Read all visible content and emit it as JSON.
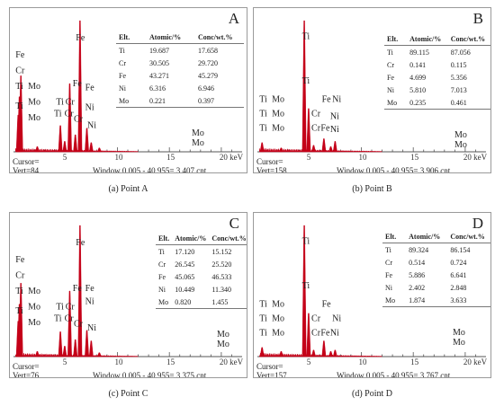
{
  "common": {
    "table_headers": [
      "Elt.",
      "Atomic/%",
      "Conc/wt.%"
    ],
    "x_ticks": [
      "5",
      "10",
      "15",
      "20 keV"
    ],
    "cursor_label": "Cursor=",
    "window_label": "Window 0.005 - 40.955=",
    "colors": {
      "spectrum": "#c40018",
      "axis": "#555555",
      "frame": "#9a9a9a"
    }
  },
  "panels": [
    {
      "letter": "A",
      "caption": "(a)  Point A",
      "vert": "Vert=84",
      "count": "3,407 cnt",
      "rows": [
        [
          "Ti",
          "19.687",
          "17.658"
        ],
        [
          "Cr",
          "30.505",
          "29.720"
        ],
        [
          "Fe",
          "43.271",
          "45.279"
        ],
        [
          "Ni",
          "6.316",
          "6.946"
        ],
        [
          "Mo",
          "0.221",
          "0.397"
        ]
      ],
      "extra_label": "Mo"
    },
    {
      "letter": "B",
      "caption": "(b)  Point B",
      "vert": "Vert=158",
      "count": "3,906 cnt",
      "rows": [
        [
          "Ti",
          "89.115",
          "87.056"
        ],
        [
          "Cr",
          "0.141",
          "0.115"
        ],
        [
          "Fe",
          "4.699",
          "5.356"
        ],
        [
          "Ni",
          "5.810",
          "7.013"
        ],
        [
          "Mo",
          "0.235",
          "0.461"
        ]
      ],
      "extra_label": "Mo"
    },
    {
      "letter": "C",
      "caption": "(c)  Point C",
      "vert": "Vert=76",
      "count": "3,375 cnt",
      "rows": [
        [
          "Ti",
          "17.120",
          "15.152"
        ],
        [
          "Cr",
          "26.545",
          "25.520"
        ],
        [
          "Fe",
          "45.065",
          "46.533"
        ],
        [
          "Ni",
          "10.449",
          "11.340"
        ],
        [
          "Mo",
          "0.820",
          "1.455"
        ]
      ],
      "extra_label": "Mo"
    },
    {
      "letter": "D",
      "caption": "(d)  Point D",
      "vert": "Vert=157",
      "count": "3,767 cnt",
      "rows": [
        [
          "Ti",
          "89.324",
          "86.154"
        ],
        [
          "Cr",
          "0.514",
          "0.724"
        ],
        [
          "Fe",
          "5.886",
          "6.641"
        ],
        [
          "Ni",
          "2.402",
          "2.848"
        ],
        [
          "Mo",
          "1.874",
          "3.633"
        ]
      ],
      "extra_label": "Mo"
    }
  ],
  "chart_data": [
    {
      "type": "bar",
      "title": "A",
      "x_unit": "keV",
      "xlim": [
        0,
        22
      ],
      "ylim": [
        0,
        1
      ],
      "peaks": [
        {
          "x": 0.45,
          "y": 0.28
        },
        {
          "x": 0.57,
          "y": 0.42
        },
        {
          "x": 0.71,
          "y": 0.58
        },
        {
          "x": 2.29,
          "y": 0.04
        },
        {
          "x": 4.51,
          "y": 0.2
        },
        {
          "x": 4.93,
          "y": 0.08
        },
        {
          "x": 5.41,
          "y": 0.52
        },
        {
          "x": 5.95,
          "y": 0.13
        },
        {
          "x": 6.4,
          "y": 1.0
        },
        {
          "x": 7.06,
          "y": 0.18
        },
        {
          "x": 7.48,
          "y": 0.07
        },
        {
          "x": 8.26,
          "y": 0.03
        }
      ],
      "labels": [
        {
          "text": "Fe",
          "x": 0.2,
          "y": 0.72
        },
        {
          "text": "Cr",
          "x": 0.2,
          "y": 0.6
        },
        {
          "text": "Ti",
          "x": 0.2,
          "y": 0.48
        },
        {
          "text": "Ti",
          "x": 0.2,
          "y": 0.33
        },
        {
          "text": "Mo",
          "x": 1.4,
          "y": 0.48
        },
        {
          "text": "Mo",
          "x": 1.4,
          "y": 0.36
        },
        {
          "text": "Mo",
          "x": 1.4,
          "y": 0.24
        },
        {
          "text": "Ti",
          "x": 4.1,
          "y": 0.36
        },
        {
          "text": "Ti",
          "x": 3.9,
          "y": 0.27
        },
        {
          "text": "Cr",
          "x": 5.0,
          "y": 0.36
        },
        {
          "text": "Cr",
          "x": 4.9,
          "y": 0.27
        },
        {
          "text": "Cr",
          "x": 5.8,
          "y": 0.23
        },
        {
          "text": "Fe",
          "x": 6.0,
          "y": 0.85
        },
        {
          "text": "Fe",
          "x": 5.7,
          "y": 0.5
        },
        {
          "text": "Ni",
          "x": 6.9,
          "y": 0.32
        },
        {
          "text": "Ni",
          "x": 7.1,
          "y": 0.18
        },
        {
          "text": "Fe",
          "x": 6.9,
          "y": 0.47
        }
      ]
    },
    {
      "type": "bar",
      "title": "B",
      "x_unit": "keV",
      "xlim": [
        0,
        22
      ],
      "ylim": [
        0,
        1
      ],
      "peaks": [
        {
          "x": 0.45,
          "y": 0.07
        },
        {
          "x": 2.29,
          "y": 0.03
        },
        {
          "x": 4.51,
          "y": 1.0
        },
        {
          "x": 4.93,
          "y": 0.33
        },
        {
          "x": 5.41,
          "y": 0.05
        },
        {
          "x": 6.4,
          "y": 0.1
        },
        {
          "x": 7.06,
          "y": 0.04
        },
        {
          "x": 7.48,
          "y": 0.08
        }
      ],
      "labels": [
        {
          "text": "Ti",
          "x": 4.3,
          "y": 0.86
        },
        {
          "text": "Ti",
          "x": 4.3,
          "y": 0.52
        },
        {
          "text": "Ti",
          "x": 0.2,
          "y": 0.38
        },
        {
          "text": "Ti",
          "x": 0.2,
          "y": 0.27
        },
        {
          "text": "Ti",
          "x": 0.2,
          "y": 0.16
        },
        {
          "text": "Mo",
          "x": 1.4,
          "y": 0.38
        },
        {
          "text": "Mo",
          "x": 1.4,
          "y": 0.27
        },
        {
          "text": "Mo",
          "x": 1.4,
          "y": 0.16
        },
        {
          "text": "Cr",
          "x": 5.2,
          "y": 0.27
        },
        {
          "text": "Cr",
          "x": 5.2,
          "y": 0.16
        },
        {
          "text": "Fe",
          "x": 6.2,
          "y": 0.38
        },
        {
          "text": "Fe",
          "x": 6.1,
          "y": 0.16
        },
        {
          "text": "Ni",
          "x": 7.2,
          "y": 0.38
        },
        {
          "text": "Ni",
          "x": 7.0,
          "y": 0.25
        },
        {
          "text": "Ni",
          "x": 7.0,
          "y": 0.15
        }
      ]
    },
    {
      "type": "bar",
      "title": "C",
      "x_unit": "keV",
      "xlim": [
        0,
        22
      ],
      "ylim": [
        0,
        1
      ],
      "peaks": [
        {
          "x": 0.45,
          "y": 0.27
        },
        {
          "x": 0.57,
          "y": 0.4
        },
        {
          "x": 0.71,
          "y": 0.56
        },
        {
          "x": 2.29,
          "y": 0.04
        },
        {
          "x": 4.51,
          "y": 0.19
        },
        {
          "x": 4.93,
          "y": 0.08
        },
        {
          "x": 5.41,
          "y": 0.5
        },
        {
          "x": 5.95,
          "y": 0.13
        },
        {
          "x": 6.4,
          "y": 1.0
        },
        {
          "x": 7.06,
          "y": 0.2
        },
        {
          "x": 7.48,
          "y": 0.12
        },
        {
          "x": 8.26,
          "y": 0.03
        }
      ],
      "labels": [
        {
          "text": "Fe",
          "x": 0.2,
          "y": 0.72
        },
        {
          "text": "Cr",
          "x": 0.2,
          "y": 0.6
        },
        {
          "text": "Ti",
          "x": 0.2,
          "y": 0.48
        },
        {
          "text": "Ti",
          "x": 0.2,
          "y": 0.33
        },
        {
          "text": "Mo",
          "x": 1.4,
          "y": 0.48
        },
        {
          "text": "Mo",
          "x": 1.4,
          "y": 0.36
        },
        {
          "text": "Mo",
          "x": 1.4,
          "y": 0.24
        },
        {
          "text": "Ti",
          "x": 4.1,
          "y": 0.36
        },
        {
          "text": "Ti",
          "x": 3.9,
          "y": 0.27
        },
        {
          "text": "Cr",
          "x": 5.0,
          "y": 0.36
        },
        {
          "text": "Cr",
          "x": 4.9,
          "y": 0.27
        },
        {
          "text": "Cr",
          "x": 5.8,
          "y": 0.23
        },
        {
          "text": "Fe",
          "x": 6.0,
          "y": 0.85
        },
        {
          "text": "Fe",
          "x": 5.7,
          "y": 0.5
        },
        {
          "text": "Ni",
          "x": 6.9,
          "y": 0.4
        },
        {
          "text": "Ni",
          "x": 7.1,
          "y": 0.2
        },
        {
          "text": "Fe",
          "x": 6.9,
          "y": 0.5
        }
      ]
    },
    {
      "type": "bar",
      "title": "D",
      "x_unit": "keV",
      "xlim": [
        0,
        22
      ],
      "ylim": [
        0,
        1
      ],
      "peaks": [
        {
          "x": 0.45,
          "y": 0.07
        },
        {
          "x": 2.29,
          "y": 0.04
        },
        {
          "x": 4.51,
          "y": 1.0
        },
        {
          "x": 4.93,
          "y": 0.33
        },
        {
          "x": 5.41,
          "y": 0.05
        },
        {
          "x": 6.4,
          "y": 0.12
        },
        {
          "x": 7.06,
          "y": 0.04
        },
        {
          "x": 7.48,
          "y": 0.05
        }
      ],
      "labels": [
        {
          "text": "Ti",
          "x": 4.3,
          "y": 0.86
        },
        {
          "text": "Ti",
          "x": 4.3,
          "y": 0.52
        },
        {
          "text": "Ti",
          "x": 0.2,
          "y": 0.38
        },
        {
          "text": "Ti",
          "x": 0.2,
          "y": 0.27
        },
        {
          "text": "Ti",
          "x": 0.2,
          "y": 0.16
        },
        {
          "text": "Mo",
          "x": 1.4,
          "y": 0.38
        },
        {
          "text": "Mo",
          "x": 1.4,
          "y": 0.27
        },
        {
          "text": "Mo",
          "x": 1.4,
          "y": 0.16
        },
        {
          "text": "Cr",
          "x": 5.2,
          "y": 0.27
        },
        {
          "text": "Cr",
          "x": 5.2,
          "y": 0.16
        },
        {
          "text": "Fe",
          "x": 6.2,
          "y": 0.38
        },
        {
          "text": "Fe",
          "x": 6.1,
          "y": 0.16
        },
        {
          "text": "Ni",
          "x": 7.2,
          "y": 0.27
        },
        {
          "text": "Ni",
          "x": 7.0,
          "y": 0.16
        }
      ]
    }
  ]
}
